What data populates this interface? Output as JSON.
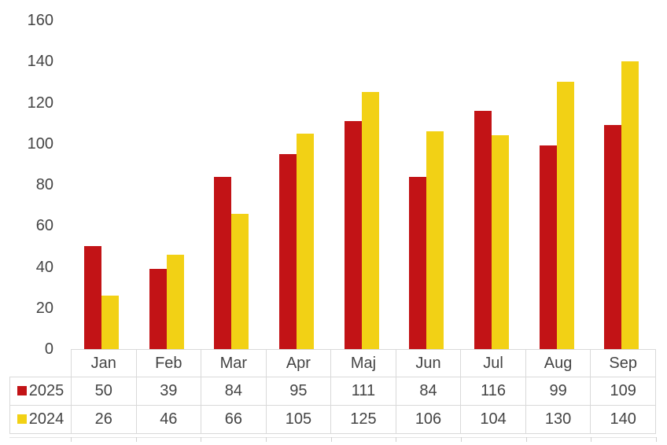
{
  "chart_data": {
    "type": "bar",
    "title": "",
    "xlabel": "",
    "ylabel": "",
    "categories": [
      "Jan",
      "Feb",
      "Mar",
      "Apr",
      "Maj",
      "Jun",
      "Jul",
      "Aug",
      "Sep"
    ],
    "series": [
      {
        "name": "2025",
        "color": "#C21316",
        "values": [
          50,
          39,
          84,
          95,
          111,
          84,
          116,
          99,
          109
        ]
      },
      {
        "name": "2024",
        "color": "#F2D115",
        "values": [
          26,
          46,
          66,
          105,
          125,
          106,
          104,
          130,
          140
        ]
      }
    ],
    "ylim": [
      0,
      160
    ],
    "yticks": [
      0,
      20,
      40,
      60,
      80,
      100,
      120,
      140,
      160
    ],
    "grid": false,
    "legend_position": "data-table-row-headers",
    "data_table_shown": true
  },
  "colors": {
    "axis_text": "#444444",
    "table_text": "#444444",
    "table_border": "#D9D9D9",
    "axis_line": "#E3E3E3",
    "background": "#FFFFFF"
  }
}
